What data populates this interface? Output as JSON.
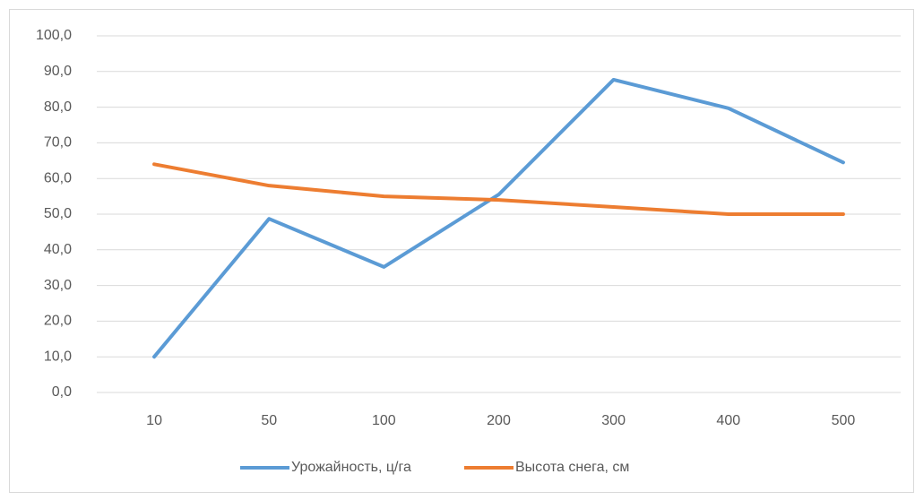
{
  "chart_data": {
    "type": "line",
    "categories": [
      "10",
      "50",
      "100",
      "200",
      "300",
      "400",
      "500"
    ],
    "series": [
      {
        "name": "Урожайность, ц/га",
        "color": "#5b9bd5",
        "values": [
          10,
          48.7,
          35.2,
          55.5,
          87.7,
          79.7,
          64.5
        ]
      },
      {
        "name": "Высота снега, см",
        "color": "#ed7d31",
        "values": [
          64,
          58,
          55,
          54,
          52,
          50,
          50
        ]
      }
    ],
    "ylim": [
      0,
      100
    ],
    "yticks": [
      {
        "value": 0,
        "label": "0,0"
      },
      {
        "value": 10,
        "label": "10,0"
      },
      {
        "value": 20,
        "label": "20,0"
      },
      {
        "value": 30,
        "label": "30,0"
      },
      {
        "value": 40,
        "label": "40,0"
      },
      {
        "value": 50,
        "label": "50,0"
      },
      {
        "value": 60,
        "label": "60,0"
      },
      {
        "value": 70,
        "label": "70,0"
      },
      {
        "value": 80,
        "label": "80,0"
      },
      {
        "value": 90,
        "label": "90,0"
      },
      {
        "value": 100,
        "label": "100,0"
      }
    ],
    "grid": true,
    "legend": "bottom"
  }
}
